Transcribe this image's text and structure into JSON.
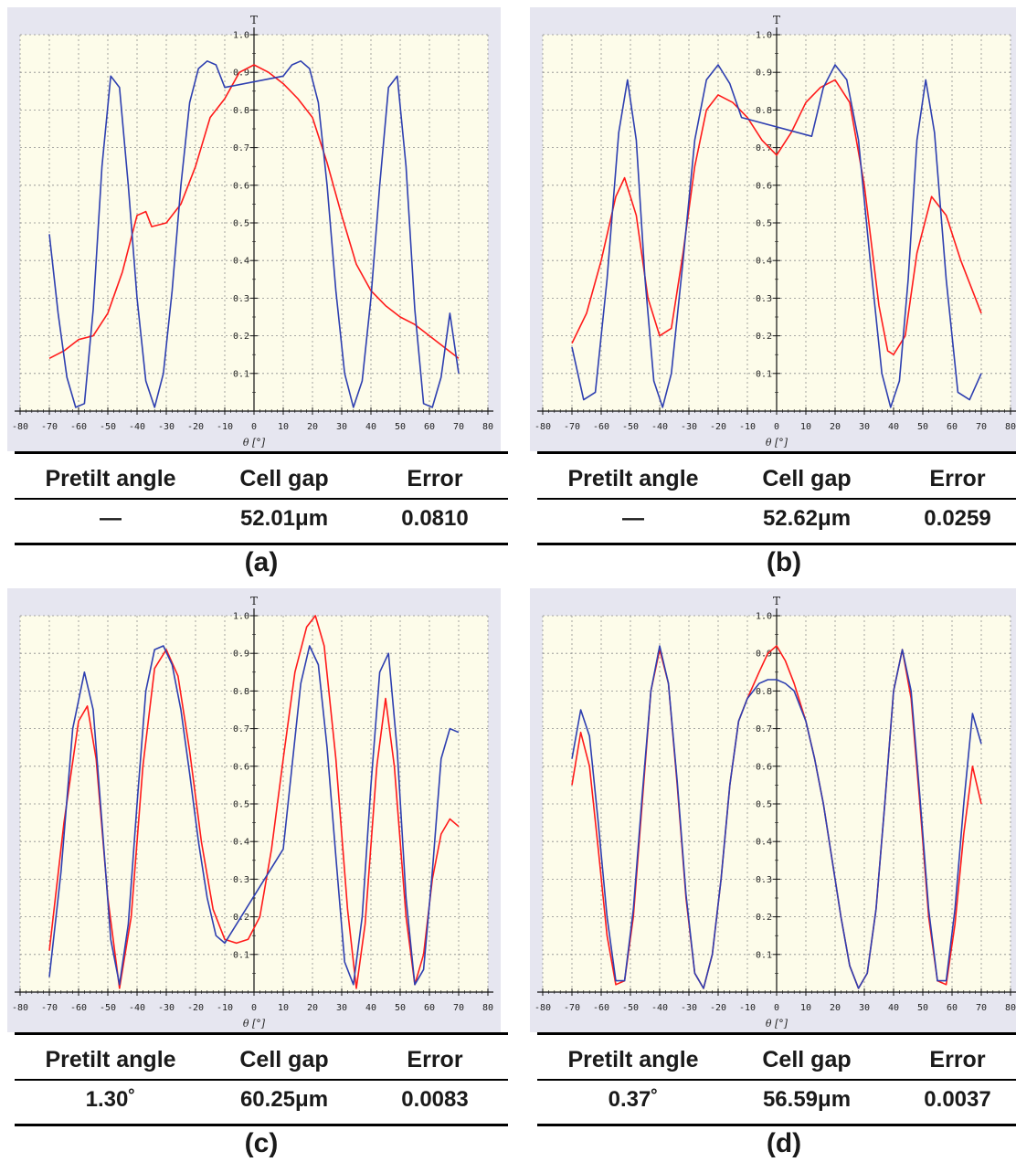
{
  "colors": {
    "background": "#ffffff",
    "plot_frame": "#e6e6f0",
    "plot_area": "#fdfcea",
    "grid": "#8c8c8c",
    "axis": "#111111",
    "measured": "#ff1a1a",
    "simulated": "#2e3fb0"
  },
  "table_header": {
    "pretilt": "Pretilt angle",
    "cell_gap": "Cell gap",
    "error": "Error"
  },
  "panels": [
    {
      "caption": "(a)",
      "pretilt": "—",
      "cell_gap": "52.01μm",
      "error": "0.0810"
    },
    {
      "caption": "(b)",
      "pretilt": "—",
      "cell_gap": "52.62μm",
      "error": "0.0259"
    },
    {
      "caption": "(c)",
      "pretilt": "1.30˚",
      "cell_gap": "60.25μm",
      "error": "0.0083"
    },
    {
      "caption": "(d)",
      "pretilt": "0.37˚",
      "cell_gap": "56.59μm",
      "error": "0.0037"
    }
  ],
  "chart_data": [
    {
      "type": "line",
      "xlabel": "θ [°]",
      "ylabel": "T",
      "xlim": [
        -80,
        80
      ],
      "ylim": [
        0,
        1.0
      ],
      "xticks": [
        -80,
        -70,
        -60,
        -50,
        -40,
        -30,
        -20,
        -10,
        0,
        10,
        20,
        30,
        40,
        50,
        60,
        70,
        80
      ],
      "yticks": [
        0.1,
        0.2,
        0.3,
        0.4,
        0.5,
        0.6,
        0.7,
        0.8,
        0.9,
        1.0
      ],
      "grid": true,
      "series": [
        {
          "color": "red",
          "x": [
            -70,
            -65,
            -60,
            -55,
            -50,
            -45,
            -40,
            -37,
            -35,
            -30,
            -25,
            -20,
            -15,
            -10,
            -5,
            0,
            5,
            10,
            15,
            20,
            25,
            30,
            35,
            40,
            45,
            50,
            55,
            60,
            65,
            70
          ],
          "y": [
            0.14,
            0.16,
            0.19,
            0.2,
            0.26,
            0.37,
            0.52,
            0.53,
            0.49,
            0.5,
            0.55,
            0.65,
            0.78,
            0.83,
            0.9,
            0.92,
            0.9,
            0.87,
            0.83,
            0.78,
            0.66,
            0.52,
            0.39,
            0.32,
            0.28,
            0.25,
            0.23,
            0.2,
            0.17,
            0.14
          ]
        },
        {
          "color": "blue",
          "x": [
            -70,
            -67,
            -64,
            -61,
            -58,
            -55,
            -52,
            -49,
            -46,
            -43,
            -40,
            -37,
            -34,
            -31,
            -28,
            -25,
            -22,
            -19,
            -16,
            -13,
            -10,
            10,
            13,
            16,
            19,
            22,
            25,
            28,
            31,
            34,
            37,
            40,
            43,
            46,
            49,
            52,
            55,
            58,
            61,
            64,
            67,
            70
          ],
          "y": [
            0.47,
            0.26,
            0.09,
            0.01,
            0.02,
            0.27,
            0.65,
            0.89,
            0.86,
            0.6,
            0.3,
            0.08,
            0.01,
            0.1,
            0.32,
            0.6,
            0.82,
            0.91,
            0.93,
            0.92,
            0.86,
            0.89,
            0.92,
            0.93,
            0.91,
            0.82,
            0.6,
            0.32,
            0.1,
            0.01,
            0.08,
            0.3,
            0.6,
            0.86,
            0.89,
            0.65,
            0.27,
            0.02,
            0.01,
            0.09,
            0.26,
            0.1
          ]
        }
      ]
    },
    {
      "type": "line",
      "xlabel": "θ [°]",
      "ylabel": "T",
      "xlim": [
        -80,
        80
      ],
      "ylim": [
        0,
        1.0
      ],
      "xticks": [
        -80,
        -70,
        -60,
        -50,
        -40,
        -30,
        -20,
        -10,
        0,
        10,
        20,
        30,
        40,
        50,
        60,
        70,
        80
      ],
      "yticks": [
        0.1,
        0.2,
        0.3,
        0.4,
        0.5,
        0.6,
        0.7,
        0.8,
        0.9,
        1.0
      ],
      "grid": true,
      "series": [
        {
          "color": "red",
          "x": [
            -70,
            -65,
            -60,
            -55,
            -52,
            -48,
            -44,
            -40,
            -36,
            -32,
            -28,
            -24,
            -20,
            -15,
            -10,
            -5,
            0,
            5,
            10,
            15,
            20,
            25,
            30,
            35,
            38,
            40,
            44,
            48,
            53,
            58,
            63,
            70
          ],
          "y": [
            0.18,
            0.26,
            0.4,
            0.57,
            0.62,
            0.52,
            0.3,
            0.2,
            0.22,
            0.42,
            0.65,
            0.8,
            0.84,
            0.82,
            0.78,
            0.72,
            0.68,
            0.74,
            0.82,
            0.86,
            0.88,
            0.82,
            0.6,
            0.28,
            0.16,
            0.15,
            0.2,
            0.42,
            0.57,
            0.52,
            0.4,
            0.26
          ]
        },
        {
          "color": "blue",
          "x": [
            -70,
            -66,
            -62,
            -58,
            -54,
            -51,
            -48,
            -45,
            -42,
            -39,
            -36,
            -32,
            -28,
            -24,
            -20,
            -16,
            -12,
            12,
            16,
            20,
            24,
            28,
            32,
            36,
            39,
            42,
            45,
            48,
            51,
            54,
            58,
            62,
            66,
            70
          ],
          "y": [
            0.17,
            0.03,
            0.05,
            0.35,
            0.74,
            0.88,
            0.72,
            0.35,
            0.08,
            0.01,
            0.1,
            0.4,
            0.72,
            0.88,
            0.92,
            0.87,
            0.78,
            0.73,
            0.86,
            0.92,
            0.88,
            0.72,
            0.4,
            0.1,
            0.01,
            0.08,
            0.35,
            0.72,
            0.88,
            0.74,
            0.35,
            0.05,
            0.03,
            0.1
          ]
        }
      ]
    },
    {
      "type": "line",
      "xlabel": "θ [°]",
      "ylabel": "T",
      "xlim": [
        -80,
        80
      ],
      "ylim": [
        0,
        1.0
      ],
      "xticks": [
        -80,
        -70,
        -60,
        -50,
        -40,
        -30,
        -20,
        -10,
        0,
        10,
        20,
        30,
        40,
        50,
        60,
        70,
        80
      ],
      "yticks": [
        0.1,
        0.2,
        0.3,
        0.4,
        0.5,
        0.6,
        0.7,
        0.8,
        0.9,
        1.0
      ],
      "grid": true,
      "series": [
        {
          "color": "red",
          "x": [
            -70,
            -65,
            -60,
            -57,
            -54,
            -50,
            -46,
            -42,
            -38,
            -34,
            -30,
            -26,
            -22,
            -18,
            -14,
            -10,
            -6,
            -2,
            2,
            6,
            10,
            14,
            18,
            21,
            24,
            28,
            32,
            35,
            38,
            42,
            45,
            48,
            52,
            55,
            58,
            61,
            64,
            67,
            70
          ],
          "y": [
            0.11,
            0.45,
            0.72,
            0.76,
            0.62,
            0.25,
            0.01,
            0.2,
            0.6,
            0.86,
            0.91,
            0.84,
            0.64,
            0.4,
            0.22,
            0.14,
            0.13,
            0.14,
            0.2,
            0.38,
            0.62,
            0.85,
            0.97,
            1.0,
            0.92,
            0.62,
            0.22,
            0.01,
            0.18,
            0.6,
            0.78,
            0.6,
            0.2,
            0.02,
            0.1,
            0.3,
            0.42,
            0.46,
            0.44
          ]
        },
        {
          "color": "blue",
          "x": [
            -70,
            -66,
            -62,
            -58,
            -55,
            -52,
            -49,
            -46,
            -43,
            -40,
            -37,
            -34,
            -31,
            -28,
            -25,
            -22,
            -19,
            -16,
            -13,
            -10,
            10,
            13,
            16,
            19,
            22,
            25,
            28,
            31,
            34,
            37,
            40,
            43,
            46,
            49,
            52,
            55,
            58,
            61,
            64,
            67,
            70
          ],
          "y": [
            0.04,
            0.32,
            0.7,
            0.85,
            0.75,
            0.45,
            0.14,
            0.02,
            0.18,
            0.5,
            0.8,
            0.91,
            0.92,
            0.87,
            0.75,
            0.58,
            0.4,
            0.25,
            0.15,
            0.13,
            0.38,
            0.6,
            0.82,
            0.92,
            0.87,
            0.65,
            0.36,
            0.08,
            0.02,
            0.2,
            0.55,
            0.85,
            0.9,
            0.64,
            0.25,
            0.02,
            0.06,
            0.32,
            0.62,
            0.7,
            0.69
          ]
        }
      ]
    },
    {
      "type": "line",
      "xlabel": "θ [°]",
      "ylabel": "T",
      "xlim": [
        -80,
        80
      ],
      "ylim": [
        0,
        1.0
      ],
      "xticks": [
        -80,
        -70,
        -60,
        -50,
        -40,
        -30,
        -20,
        -10,
        0,
        10,
        20,
        30,
        40,
        50,
        60,
        70,
        80
      ],
      "yticks": [
        0.1,
        0.2,
        0.3,
        0.4,
        0.5,
        0.6,
        0.7,
        0.8,
        0.9,
        1.0
      ],
      "grid": true,
      "series": [
        {
          "color": "red",
          "x": [
            -70,
            -67,
            -64,
            -61,
            -58,
            -55,
            -52,
            -49,
            -46,
            -43,
            -40,
            -37,
            -34,
            -31,
            -28,
            -25,
            -22,
            -19,
            -16,
            -13,
            -10,
            -6,
            -3,
            0,
            3,
            6,
            10,
            13,
            16,
            19,
            22,
            25,
            28,
            31,
            34,
            37,
            40,
            43,
            46,
            49,
            52,
            55,
            58,
            61,
            64,
            67,
            70
          ],
          "y": [
            0.55,
            0.69,
            0.6,
            0.38,
            0.15,
            0.02,
            0.03,
            0.2,
            0.5,
            0.8,
            0.91,
            0.82,
            0.55,
            0.25,
            0.05,
            0.01,
            0.1,
            0.3,
            0.55,
            0.72,
            0.78,
            0.85,
            0.9,
            0.92,
            0.88,
            0.82,
            0.72,
            0.62,
            0.5,
            0.35,
            0.2,
            0.07,
            0.01,
            0.05,
            0.22,
            0.5,
            0.8,
            0.91,
            0.78,
            0.5,
            0.2,
            0.03,
            0.02,
            0.18,
            0.42,
            0.6,
            0.5
          ]
        },
        {
          "color": "blue",
          "x": [
            -70,
            -67,
            -64,
            -61,
            -58,
            -55,
            -52,
            -49,
            -46,
            -43,
            -40,
            -37,
            -34,
            -31,
            -28,
            -25,
            -22,
            -19,
            -16,
            -13,
            -10,
            -6,
            -3,
            0,
            3,
            6,
            10,
            13,
            16,
            19,
            22,
            25,
            28,
            31,
            34,
            37,
            40,
            43,
            46,
            49,
            52,
            55,
            58,
            61,
            64,
            67,
            70
          ],
          "y": [
            0.62,
            0.75,
            0.68,
            0.45,
            0.2,
            0.03,
            0.03,
            0.22,
            0.52,
            0.8,
            0.92,
            0.82,
            0.56,
            0.26,
            0.05,
            0.01,
            0.1,
            0.3,
            0.55,
            0.72,
            0.78,
            0.82,
            0.83,
            0.83,
            0.82,
            0.8,
            0.72,
            0.62,
            0.5,
            0.35,
            0.2,
            0.07,
            0.01,
            0.05,
            0.22,
            0.5,
            0.8,
            0.91,
            0.8,
            0.52,
            0.22,
            0.03,
            0.03,
            0.22,
            0.5,
            0.74,
            0.66
          ]
        }
      ]
    }
  ]
}
